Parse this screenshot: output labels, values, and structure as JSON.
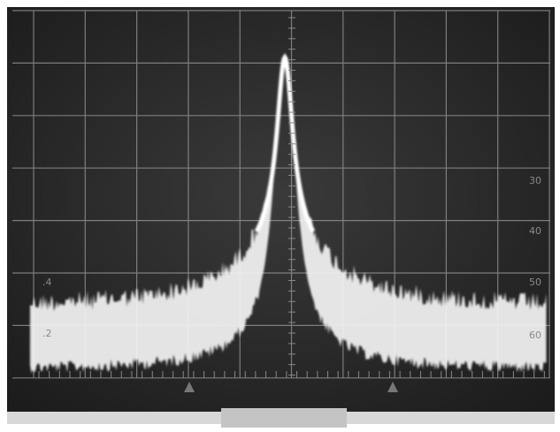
{
  "graticule_labels": {
    "left": [
      ".2",
      ".4"
    ],
    "right": [
      "60",
      "50",
      "40",
      "30"
    ]
  }
}
